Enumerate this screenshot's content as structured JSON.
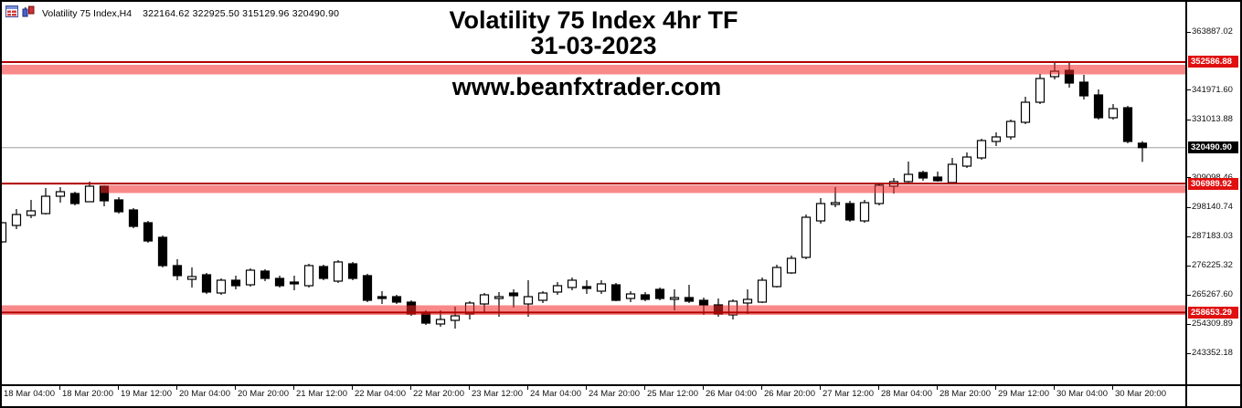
{
  "header": {
    "symbol_info": "Volatility 75 Index,H4",
    "ohlc": "322164.62 322925.50 315129.96 320490.90",
    "icons": [
      "grid-list-icon",
      "candlestick-chart-icon"
    ]
  },
  "overlay": {
    "title_line1": "Volatility 75 Index 4hr TF",
    "title_line2": "31-03-2023",
    "watermark": "www.beanfxtrader.com"
  },
  "colors": {
    "zone_band": "#f42828",
    "zone_line": "#b00000",
    "badge_red": "#e01010",
    "badge_black": "#000000",
    "current_price_line": "#b0b0b0",
    "bull_body": "#ffffff",
    "bear_body": "#000000",
    "candle_outline": "#000000"
  },
  "chart_data": {
    "type": "candlestick",
    "title": "Volatility 75 Index 4hr TF",
    "subtitle": "31-03-2023",
    "timeframe": "H4",
    "grid": false,
    "y_axis_ticks": [
      "363887.02",
      "341971.60",
      "331013.88",
      "309098.46",
      "298140.74",
      "287183.03",
      "276225.32",
      "265267.60",
      "254309.89",
      "243352.18"
    ],
    "y_axis_range": {
      "top_tick": 363887.02,
      "bottom_tick": 243352.18
    },
    "x_labels": [
      "18 Mar 04:00",
      "18 Mar 20:00",
      "19 Mar 12:00",
      "20 Mar 04:00",
      "20 Mar 20:00",
      "21 Mar 12:00",
      "22 Mar 04:00",
      "22 Mar 20:00",
      "23 Mar 12:00",
      "24 Mar 04:00",
      "24 Mar 20:00",
      "25 Mar 12:00",
      "26 Mar 04:00",
      "26 Mar 20:00",
      "27 Mar 12:00",
      "28 Mar 04:00",
      "28 Mar 20:00",
      "29 Mar 12:00",
      "30 Mar 04:00",
      "30 Mar 20:00"
    ],
    "price_badges": [
      {
        "value": "352586.88",
        "price": 352586.88,
        "color": "red"
      },
      {
        "value": "320490.90",
        "price": 320490.9,
        "color": "black"
      },
      {
        "value": "306989.92",
        "price": 306989.92,
        "color": "red"
      },
      {
        "value": "258653.29",
        "price": 258653.29,
        "color": "red"
      }
    ],
    "zones": [
      {
        "label": "352586.88",
        "line_price": 352586.88,
        "band_top_price": 351560,
        "band_bottom_price": 347965,
        "start_index": 0
      },
      {
        "label": "306989.92",
        "line_price": 306989.92,
        "band_top_price": 306360,
        "band_bottom_price": 303450,
        "start_index": 7
      },
      {
        "label": "258653.29",
        "line_price": 258653.29,
        "band_top_price": 261330,
        "band_bottom_price": 257735,
        "start_index": 0
      }
    ],
    "current_price": 320490.9,
    "candles_format": [
      "open",
      "high",
      "low",
      "close"
    ],
    "candles": [
      [
        285130,
        292600,
        284800,
        292320
      ],
      [
        291290,
        297460,
        289920,
        295400
      ],
      [
        295060,
        300880,
        294030,
        296770
      ],
      [
        295740,
        305330,
        295400,
        302250
      ],
      [
        302250,
        305670,
        299850,
        303960
      ],
      [
        303280,
        303960,
        298820,
        299510
      ],
      [
        300190,
        307730,
        300190,
        306020
      ],
      [
        306020,
        306360,
        298480,
        300540
      ],
      [
        300880,
        301910,
        295740,
        296430
      ],
      [
        297110,
        297800,
        290260,
        290950
      ],
      [
        292320,
        293000,
        284790,
        285470
      ],
      [
        286840,
        287530,
        275540,
        276230
      ],
      [
        276230,
        278620,
        270750,
        272460
      ],
      [
        271090,
        275540,
        268010,
        272120
      ],
      [
        272800,
        273490,
        265610,
        266300
      ],
      [
        265950,
        271430,
        265270,
        270750
      ],
      [
        270750,
        272460,
        267320,
        268690
      ],
      [
        269030,
        275200,
        268350,
        274510
      ],
      [
        274170,
        274860,
        270400,
        271430
      ],
      [
        271430,
        272460,
        268010,
        268690
      ],
      [
        270060,
        272460,
        266980,
        269380
      ],
      [
        268690,
        276910,
        268010,
        276230
      ],
      [
        275880,
        276570,
        270750,
        271430
      ],
      [
        270400,
        278280,
        269720,
        277600
      ],
      [
        276910,
        277600,
        270750,
        271430
      ],
      [
        272460,
        273140,
        262530,
        263210
      ],
      [
        264580,
        266640,
        261840,
        263900
      ],
      [
        264580,
        265270,
        261840,
        262530
      ],
      [
        262530,
        263210,
        257390,
        258080
      ],
      [
        258760,
        259450,
        253970,
        254650
      ],
      [
        254310,
        259450,
        253280,
        256020
      ],
      [
        255680,
        260820,
        252600,
        257390
      ],
      [
        258080,
        262870,
        256020,
        262190
      ],
      [
        261840,
        265950,
        258760,
        265270
      ],
      [
        263900,
        266300,
        257050,
        264580
      ],
      [
        265950,
        267320,
        260480,
        264930
      ],
      [
        261840,
        270750,
        257050,
        264580
      ],
      [
        263210,
        266640,
        262190,
        265950
      ],
      [
        266300,
        270060,
        265270,
        268690
      ],
      [
        268010,
        271770,
        266980,
        270750
      ],
      [
        268350,
        270750,
        265610,
        267660
      ],
      [
        266640,
        270750,
        265610,
        269380
      ],
      [
        269030,
        269720,
        262870,
        263210
      ],
      [
        263900,
        266640,
        262530,
        265610
      ],
      [
        265270,
        266300,
        262870,
        263560
      ],
      [
        267320,
        268010,
        263210,
        263900
      ],
      [
        263560,
        267320,
        259450,
        264240
      ],
      [
        264240,
        269030,
        262190,
        262870
      ],
      [
        263210,
        264240,
        257740,
        261500
      ],
      [
        261500,
        263900,
        257050,
        258080
      ],
      [
        257740,
        263560,
        256020,
        262870
      ],
      [
        262190,
        267320,
        258080,
        263560
      ],
      [
        262530,
        271770,
        262190,
        270750
      ],
      [
        268350,
        276570,
        268010,
        275540
      ],
      [
        273490,
        279990,
        273140,
        278970
      ],
      [
        279310,
        295400,
        278620,
        294370
      ],
      [
        293000,
        301570,
        291980,
        299510
      ],
      [
        299170,
        305670,
        298140,
        299850
      ],
      [
        299510,
        300540,
        292660,
        293350
      ],
      [
        293000,
        300880,
        292320,
        299850
      ],
      [
        299510,
        307390,
        298820,
        306360
      ],
      [
        306020,
        309100,
        303280,
        307730
      ],
      [
        307730,
        315260,
        307390,
        310470
      ],
      [
        311150,
        311840,
        308070,
        309100
      ],
      [
        309440,
        311500,
        307730,
        308070
      ],
      [
        307390,
        316630,
        306700,
        314230
      ],
      [
        313550,
        318690,
        312860,
        316970
      ],
      [
        316630,
        323820,
        315950,
        323140
      ],
      [
        322800,
        326220,
        321080,
        324510
      ],
      [
        324510,
        331010,
        323480,
        330330
      ],
      [
        329990,
        339570,
        329300,
        337520
      ],
      [
        337520,
        348130,
        336830,
        346420
      ],
      [
        347110,
        352240,
        346080,
        349160
      ],
      [
        349500,
        352930,
        343000,
        344710
      ],
      [
        345050,
        347790,
        338550,
        339920
      ],
      [
        340260,
        342310,
        331010,
        331700
      ],
      [
        331700,
        336830,
        331010,
        335120
      ],
      [
        335460,
        336150,
        322110,
        322800
      ],
      [
        322164.62,
        322925.5,
        315129.96,
        320490.9
      ]
    ]
  }
}
